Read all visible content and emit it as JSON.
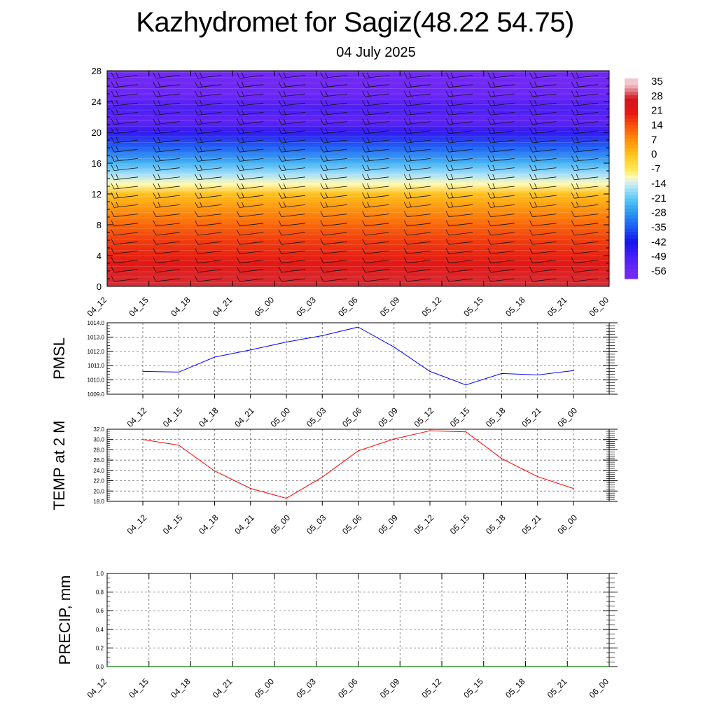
{
  "title": "Kazhydromet for Sagiz(48.22 54.75)",
  "subtitle": "04 July 2025",
  "chart_data": [
    {
      "type": "heatmap",
      "ylim": [
        0,
        28
      ],
      "yticks": [
        "0",
        "4",
        "8",
        "12",
        "16",
        "20",
        "24",
        "28"
      ],
      "x": [
        "04_12",
        "04_15",
        "04_18",
        "04_21",
        "05_00",
        "05_03",
        "05_06",
        "05_09",
        "05_12",
        "05_15",
        "05_18",
        "05_21",
        "06_00"
      ],
      "colorbar_labels": [
        "35",
        "28",
        "21",
        "14",
        "7",
        "0",
        "-7",
        "-14",
        "-21",
        "-28",
        "-35",
        "-42",
        "-49",
        "-56"
      ],
      "temperature_profile": [
        {
          "level": 0,
          "value": 29
        },
        {
          "level": 3,
          "value": 22
        },
        {
          "level": 6,
          "value": 17
        },
        {
          "level": 9,
          "value": 10
        },
        {
          "level": 12,
          "value": 1
        },
        {
          "level": 13.3,
          "value": -10
        },
        {
          "level": 14.5,
          "value": -16
        },
        {
          "level": 16,
          "value": -24
        },
        {
          "level": 18,
          "value": -34
        },
        {
          "level": 20,
          "value": -46
        },
        {
          "level": 21.5,
          "value": -54
        },
        {
          "level": 23,
          "value": -50
        },
        {
          "level": 25,
          "value": -56
        },
        {
          "level": 28,
          "value": -58
        }
      ],
      "wind_barbs": true
    },
    {
      "type": "line",
      "ylabel": "PMSL",
      "ylim": [
        1009.0,
        1014.0
      ],
      "yticks": [
        "1009.0",
        "1010.0",
        "1011.0",
        "1012.0",
        "1013.0",
        "1014.0"
      ],
      "x": [
        "04_12",
        "04_15",
        "04_18",
        "04_21",
        "05_00",
        "05_03",
        "05_06",
        "05_09",
        "05_12",
        "05_15",
        "05_18",
        "05_21",
        "06_00"
      ],
      "series": [
        {
          "values": [
            1010.6,
            1010.55,
            1011.6,
            1012.1,
            1012.65,
            1013.1,
            1013.7,
            1012.3,
            1010.6,
            1009.65,
            1010.45,
            1010.35,
            1010.65
          ]
        }
      ],
      "color": "#0000ff",
      "grid": true
    },
    {
      "type": "line",
      "ylabel": "TEMP at 2 M",
      "ylim": [
        18.0,
        32.0
      ],
      "yticks": [
        "18.0",
        "20.0",
        "22.0",
        "24.0",
        "26.0",
        "28.0",
        "30.0",
        "32.0"
      ],
      "x": [
        "04_12",
        "04_15",
        "04_18",
        "04_21",
        "05_00",
        "05_03",
        "05_06",
        "05_09",
        "05_12",
        "05_15",
        "05_18",
        "05_21",
        "06_00"
      ],
      "series": [
        {
          "values": [
            30.0,
            28.9,
            23.9,
            20.5,
            18.6,
            22.7,
            27.8,
            30.1,
            31.7,
            31.5,
            26.3,
            22.8,
            20.5
          ]
        }
      ],
      "color": "#ff0000",
      "grid": true
    },
    {
      "type": "bar",
      "ylabel": "PRECIP, mm",
      "ylim": [
        0.0,
        1.0
      ],
      "yticks": [
        "0.0",
        "0.2",
        "0.4",
        "0.6",
        "0.8",
        "1.0"
      ],
      "x": [
        "04_12",
        "04_15",
        "04_18",
        "04_21",
        "05_00",
        "05_03",
        "05_06",
        "05_09",
        "05_12",
        "05_15",
        "05_18",
        "05_21",
        "06_00"
      ],
      "values": [
        0,
        0,
        0,
        0,
        0,
        0,
        0,
        0,
        0,
        0,
        0,
        0,
        0
      ],
      "color": "#008000",
      "grid": true
    }
  ]
}
